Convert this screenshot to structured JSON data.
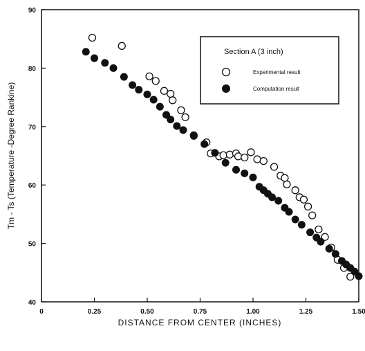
{
  "chart_data": {
    "type": "scatter",
    "xlabel": "DISTANCE FROM CENTER (INCHES)",
    "ylabel": "Tm - Ts (Temperature -Degree Rankine)",
    "xlim": [
      0,
      1.5
    ],
    "ylim": [
      40,
      90
    ],
    "xticks": [
      "0",
      "0.25",
      "0.50",
      "0.75",
      "1.00",
      "1.25",
      "1.50"
    ],
    "yticks": [
      "40",
      "50",
      "60",
      "70",
      "80",
      "90"
    ],
    "grid": false,
    "legend": {
      "placement": "top-right",
      "title": "Section A (3 inch)"
    },
    "series": [
      {
        "name": "Experimental result",
        "marker": "open-circle",
        "color": "#111111",
        "points": [
          [
            0.24,
            85.2
          ],
          [
            0.38,
            83.8
          ],
          [
            0.51,
            78.6
          ],
          [
            0.54,
            77.8
          ],
          [
            0.58,
            76.1
          ],
          [
            0.61,
            75.6
          ],
          [
            0.62,
            74.5
          ],
          [
            0.66,
            72.8
          ],
          [
            0.68,
            71.6
          ],
          [
            0.72,
            68.5
          ],
          [
            0.78,
            67.3
          ],
          [
            0.8,
            65.4
          ],
          [
            0.84,
            64.9
          ],
          [
            0.86,
            65.1
          ],
          [
            0.89,
            65.2
          ],
          [
            0.92,
            65.4
          ],
          [
            0.93,
            64.9
          ],
          [
            0.96,
            64.7
          ],
          [
            0.99,
            65.6
          ],
          [
            1.02,
            64.4
          ],
          [
            1.05,
            64.1
          ],
          [
            1.1,
            63.1
          ],
          [
            1.13,
            61.6
          ],
          [
            1.15,
            61.2
          ],
          [
            1.16,
            60.1
          ],
          [
            1.2,
            59.1
          ],
          [
            1.22,
            57.9
          ],
          [
            1.24,
            57.5
          ],
          [
            1.26,
            56.3
          ],
          [
            1.28,
            54.8
          ],
          [
            1.31,
            52.4
          ],
          [
            1.34,
            51.1
          ],
          [
            1.37,
            49.3
          ],
          [
            1.4,
            47.2
          ],
          [
            1.43,
            45.8
          ],
          [
            1.46,
            44.3
          ]
        ]
      },
      {
        "name": "Computation result",
        "marker": "filled-circle",
        "color": "#111111",
        "points": [
          [
            0.21,
            82.8
          ],
          [
            0.25,
            81.7
          ],
          [
            0.3,
            80.9
          ],
          [
            0.34,
            80.0
          ],
          [
            0.39,
            78.5
          ],
          [
            0.43,
            77.1
          ],
          [
            0.46,
            76.3
          ],
          [
            0.5,
            75.5
          ],
          [
            0.53,
            74.6
          ],
          [
            0.56,
            73.4
          ],
          [
            0.59,
            72.0
          ],
          [
            0.61,
            71.2
          ],
          [
            0.64,
            70.1
          ],
          [
            0.67,
            69.4
          ],
          [
            0.72,
            68.4
          ],
          [
            0.77,
            67.0
          ],
          [
            0.82,
            65.5
          ],
          [
            0.87,
            63.8
          ],
          [
            0.92,
            62.6
          ],
          [
            0.96,
            62.0
          ],
          [
            1.0,
            61.3
          ],
          [
            1.03,
            59.7
          ],
          [
            1.05,
            59.1
          ],
          [
            1.07,
            58.5
          ],
          [
            1.09,
            57.9
          ],
          [
            1.12,
            57.3
          ],
          [
            1.15,
            56.1
          ],
          [
            1.17,
            55.4
          ],
          [
            1.2,
            54.1
          ],
          [
            1.23,
            53.2
          ],
          [
            1.27,
            51.9
          ],
          [
            1.3,
            51.0
          ],
          [
            1.32,
            50.3
          ],
          [
            1.36,
            49.1
          ],
          [
            1.39,
            48.2
          ],
          [
            1.42,
            47.0
          ],
          [
            1.44,
            46.4
          ],
          [
            1.46,
            45.8
          ],
          [
            1.48,
            45.2
          ],
          [
            1.5,
            44.4
          ]
        ]
      }
    ]
  },
  "legend_labels": {
    "title": "Section A (3 inch)",
    "experimental": "Experimental result",
    "computation": "Computation result"
  }
}
